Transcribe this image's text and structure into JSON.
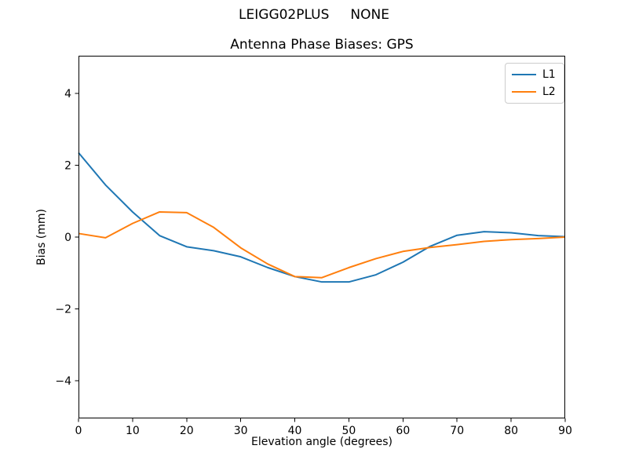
{
  "figure": {
    "suptitle": "LEIGG02PLUS     NONE",
    "background": "#ffffff",
    "text_color": "#000000",
    "spine_color": "#000000"
  },
  "chart_data": {
    "type": "line",
    "title": "Antenna Phase Biases: GPS",
    "xlabel": "Elevation angle (degrees)",
    "ylabel": "Bias (mm)",
    "xlim": [
      0,
      90
    ],
    "ylim": [
      -5.05,
      5.05
    ],
    "xticks": [
      0,
      10,
      20,
      30,
      40,
      50,
      60,
      70,
      80,
      90
    ],
    "yticks": [
      -4,
      -2,
      0,
      2,
      4
    ],
    "grid": false,
    "legend_position": "upper right",
    "x": [
      0,
      5,
      10,
      15,
      20,
      25,
      30,
      35,
      40,
      45,
      50,
      55,
      60,
      65,
      70,
      75,
      80,
      85,
      90
    ],
    "series": [
      {
        "name": "L1",
        "color": "#1f77b4",
        "values": [
          2.35,
          1.45,
          0.7,
          0.04,
          -0.27,
          -0.38,
          -0.55,
          -0.85,
          -1.1,
          -1.25,
          -1.25,
          -1.05,
          -0.7,
          -0.26,
          0.05,
          0.15,
          0.12,
          0.04,
          0.01
        ]
      },
      {
        "name": "L2",
        "color": "#ff7f0e",
        "values": [
          0.1,
          -0.02,
          0.38,
          0.7,
          0.68,
          0.27,
          -0.3,
          -0.75,
          -1.1,
          -1.13,
          -0.85,
          -0.6,
          -0.4,
          -0.29,
          -0.21,
          -0.12,
          -0.07,
          -0.04,
          0.0
        ]
      }
    ]
  }
}
